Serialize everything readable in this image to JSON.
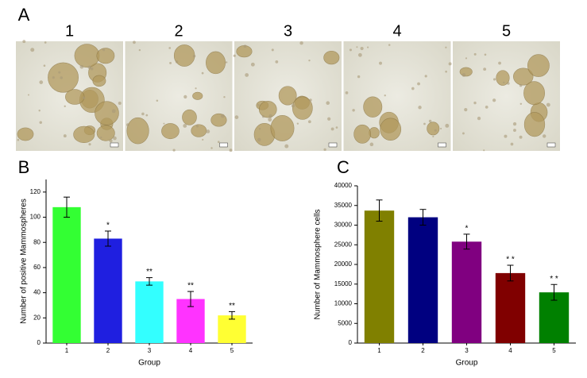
{
  "panel_a": {
    "label": "A",
    "images": [
      "1",
      "2",
      "3",
      "4",
      "5"
    ]
  },
  "chart_data": [
    {
      "type": "bar",
      "panel_label": "B",
      "xlabel": "Group",
      "ylabel": "Number of positive Mammospheres",
      "categories": [
        "1",
        "2",
        "3",
        "4",
        "5"
      ],
      "values": [
        108,
        83,
        49,
        35,
        22
      ],
      "errors": [
        8,
        6,
        3,
        6,
        3
      ],
      "annotations": [
        null,
        "*",
        "**",
        "**",
        "**"
      ],
      "colors": [
        "#33ff33",
        "#1f1fe0",
        "#33ffff",
        "#ff33ff",
        "#ffff33"
      ],
      "ylim": [
        0,
        130
      ],
      "yticks": [
        0,
        20,
        40,
        60,
        80,
        100,
        120
      ]
    },
    {
      "type": "bar",
      "panel_label": "C",
      "xlabel": "Group",
      "ylabel": "Number of Mammosphere cells",
      "categories": [
        "1",
        "2",
        "3",
        "4",
        "5"
      ],
      "values": [
        33700,
        32000,
        25800,
        17800,
        12900
      ],
      "errors": [
        2700,
        2000,
        1900,
        2000,
        2000
      ],
      "annotations": [
        null,
        null,
        "*",
        "* *",
        "* *"
      ],
      "colors": [
        "#808000",
        "#000080",
        "#800080",
        "#800000",
        "#008000"
      ],
      "ylim": [
        0,
        40000
      ],
      "yticks": [
        0,
        5000,
        10000,
        15000,
        20000,
        25000,
        30000,
        35000,
        40000
      ]
    }
  ]
}
